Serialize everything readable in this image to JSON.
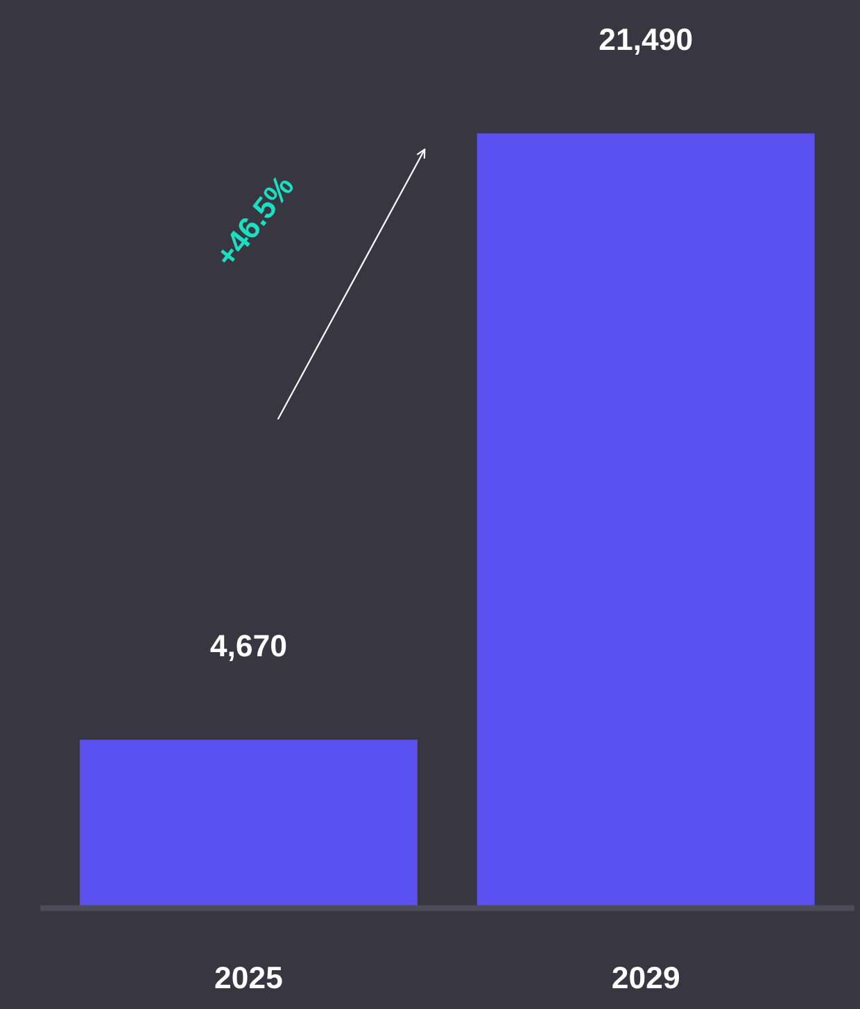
{
  "chart_data": {
    "type": "bar",
    "categories": [
      "2025",
      "2029"
    ],
    "values": [
      4670,
      21490
    ],
    "color": "#5b50f0",
    "data_labels": true,
    "value_labels": [
      "4,670",
      "21,490"
    ],
    "annotations": [
      "+46.5%"
    ],
    "grid": false,
    "legend": false
  }
}
